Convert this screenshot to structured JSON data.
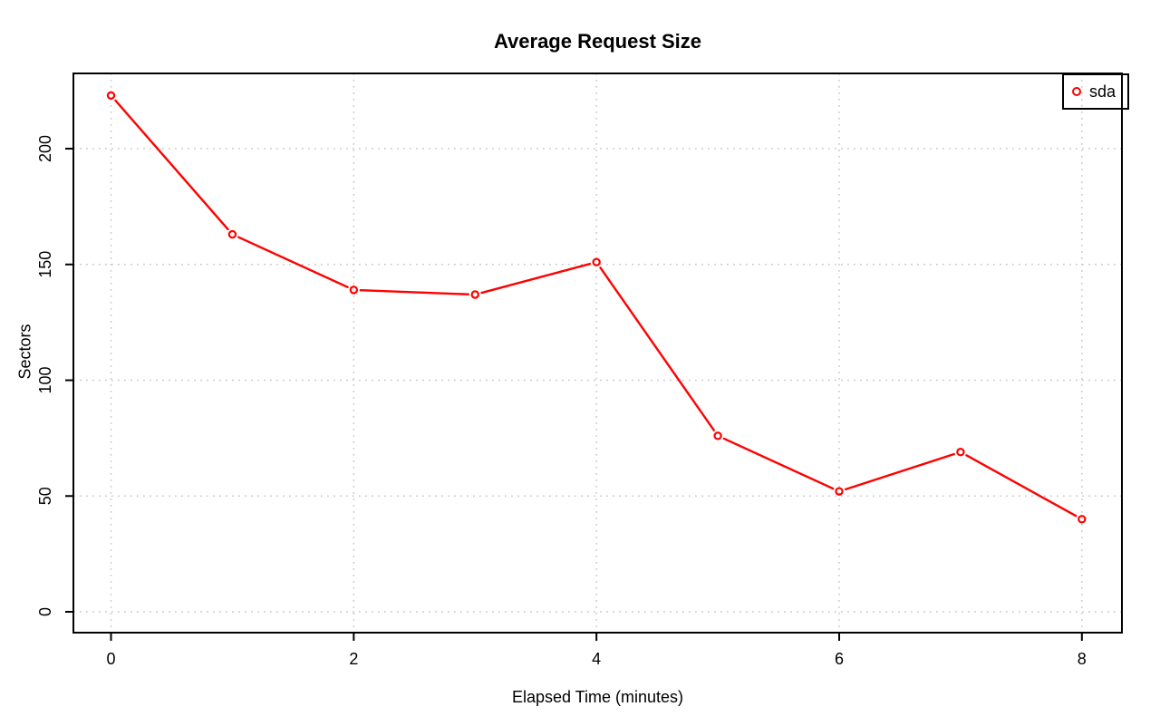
{
  "chart_data": {
    "type": "line",
    "title": "Average Request Size",
    "xlabel": "Elapsed Time (minutes)",
    "ylabel": "Sectors",
    "x": [
      0,
      1,
      2,
      3,
      4,
      5,
      6,
      7,
      8
    ],
    "series": [
      {
        "name": "sda",
        "color": "#ff0000",
        "marker": "open-circle",
        "values": [
          223,
          163,
          139,
          137,
          151,
          76,
          52,
          69,
          40
        ]
      }
    ],
    "xticks": [
      0,
      2,
      4,
      6,
      8
    ],
    "yticks": [
      0,
      50,
      100,
      150,
      200
    ],
    "xlim": [
      -0.31,
      8.33
    ],
    "ylim": [
      -9,
      232.5
    ],
    "grid": {
      "style": "dotted",
      "color": "#c8c8c8"
    },
    "axis_color": "#000000",
    "background_color": "#ffffff",
    "legend": {
      "position": "topright",
      "entries": [
        {
          "label": "sda",
          "color": "#ff0000"
        }
      ]
    }
  }
}
